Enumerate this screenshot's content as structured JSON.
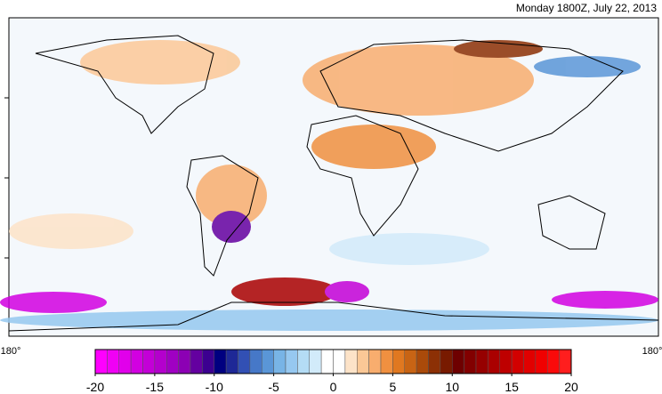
{
  "header": {
    "title": "Monday 1800Z, July 22, 2013"
  },
  "map": {
    "x_labels": [
      "180°",
      "180°"
    ]
  },
  "colorbar": {
    "lim": [
      -20,
      20
    ],
    "ticks": [
      -20,
      -15,
      -10,
      -5,
      0,
      5,
      10,
      15,
      20
    ],
    "colors": [
      "#ff00ff",
      "#f000f5",
      "#e100eb",
      "#d200e1",
      "#c300d7",
      "#b400cd",
      "#a000c3",
      "#8c00b4",
      "#6400a0",
      "#3c0090",
      "#000080",
      "#1e2896",
      "#3250b4",
      "#4678c8",
      "#5a96d7",
      "#78b4e6",
      "#96c8f0",
      "#b4dcf5",
      "#d2ebfa",
      "#ffffff",
      "#ffffff",
      "#fde3c8",
      "#fbc896",
      "#f8ad6e",
      "#f09040",
      "#e07820",
      "#c86414",
      "#aa4a0a",
      "#8c3005",
      "#781a00",
      "#6e0000",
      "#820000",
      "#960000",
      "#aa0000",
      "#be0000",
      "#d20000",
      "#e10000",
      "#f00000",
      "#fa0a0a",
      "#ff1e1e"
    ]
  }
}
